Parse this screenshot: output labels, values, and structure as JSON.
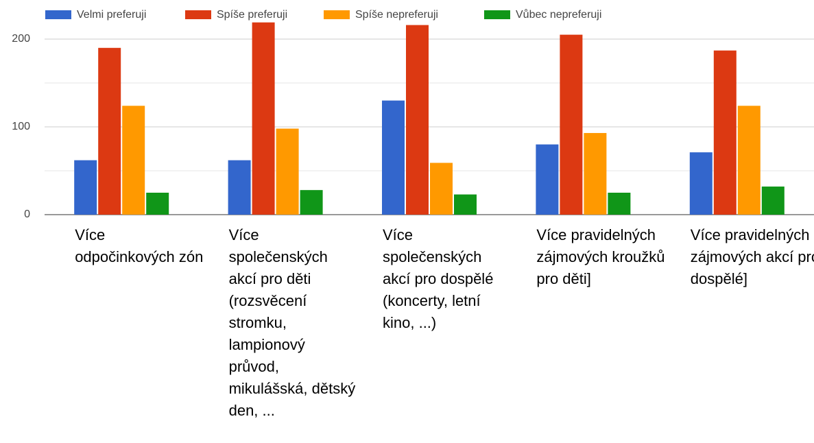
{
  "chart_data": {
    "type": "bar",
    "categories": [
      "Více odpočinkových zón",
      "Více společenských akcí pro děti (rozsvěcení stromku, lampionový průvod, mikulášská, dětský den, ...",
      "Více společenských akcí pro dospělé (koncerty, letní kino, ...)",
      "Více pravidelných zájmových kroužků pro děti]",
      "Více pravidelných zájmových akcí pro dospělé]"
    ],
    "series": [
      {
        "name": "Velmi preferuji",
        "color": "#3366cc",
        "values": [
          62,
          62,
          130,
          80,
          71
        ]
      },
      {
        "name": "Spíše preferuji",
        "color": "#dc3912",
        "values": [
          190,
          219,
          216,
          205,
          187
        ]
      },
      {
        "name": "Spíše nepreferuji",
        "color": "#ff9900",
        "values": [
          124,
          98,
          59,
          93,
          124
        ]
      },
      {
        "name": "Vůbec nepreferuji",
        "color": "#109618",
        "values": [
          25,
          28,
          23,
          25,
          32
        ]
      }
    ],
    "ylim": [
      0,
      225
    ],
    "yticks": [
      0,
      100,
      200
    ],
    "minor_gridlines": [
      50,
      150
    ],
    "grid": true,
    "legend": "top"
  }
}
